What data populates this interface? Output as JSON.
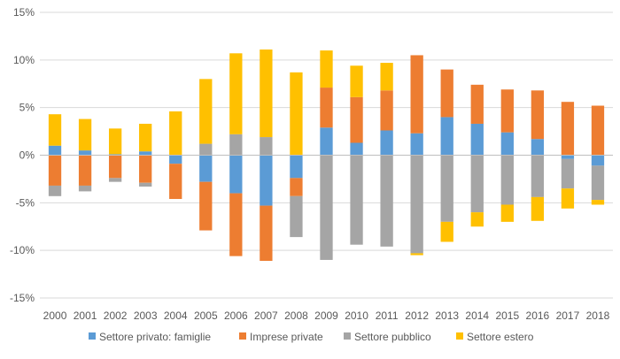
{
  "chart_data": {
    "type": "bar",
    "stacked": true,
    "title": "",
    "xlabel": "",
    "ylabel": "",
    "ylim": [
      -15,
      15
    ],
    "y_ticks": [
      15,
      10,
      5,
      0,
      -5,
      -10,
      -15
    ],
    "y_tick_labels": [
      "15%",
      "10%",
      "5%",
      "0%",
      "-5%",
      "-10%",
      "-15%"
    ],
    "grid": true,
    "legend_position": "bottom",
    "categories": [
      "2000",
      "2001",
      "2002",
      "2003",
      "2004",
      "2005",
      "2006",
      "2007",
      "2008",
      "2009",
      "2010",
      "2011",
      "2012",
      "2013",
      "2014",
      "2015",
      "2016",
      "2017",
      "2018"
    ],
    "series": [
      {
        "name": "Settore privato: famiglie",
        "color": "#5B9BD5",
        "values": [
          1.0,
          0.5,
          0.1,
          0.4,
          -0.9,
          -2.8,
          -4.0,
          -5.3,
          -2.4,
          2.9,
          1.3,
          2.6,
          2.3,
          4.0,
          3.3,
          2.4,
          1.7,
          -0.4,
          -1.1
        ]
      },
      {
        "name": "Imprese private",
        "color": "#ED7D31",
        "values": [
          -3.2,
          -3.2,
          -2.4,
          -2.9,
          -3.7,
          -5.1,
          -6.6,
          -5.8,
          -1.9,
          4.2,
          4.8,
          4.2,
          8.2,
          5.0,
          4.1,
          4.5,
          5.1,
          5.6,
          5.2
        ]
      },
      {
        "name": "Settore pubblico",
        "color": "#A5A5A5",
        "values": [
          -1.1,
          -0.6,
          -0.4,
          -0.4,
          0.0,
          1.2,
          2.2,
          1.9,
          -4.3,
          -11.0,
          -9.4,
          -9.6,
          -10.3,
          -7.0,
          -6.0,
          -5.2,
          -4.4,
          -3.1,
          -3.6
        ]
      },
      {
        "name": "Settore estero",
        "color": "#FFC000",
        "values": [
          3.3,
          3.3,
          2.7,
          2.9,
          4.6,
          6.8,
          8.5,
          9.2,
          8.7,
          3.9,
          3.3,
          2.9,
          -0.2,
          -2.1,
          -1.5,
          -1.8,
          -2.5,
          -2.1,
          -0.5
        ]
      }
    ]
  }
}
